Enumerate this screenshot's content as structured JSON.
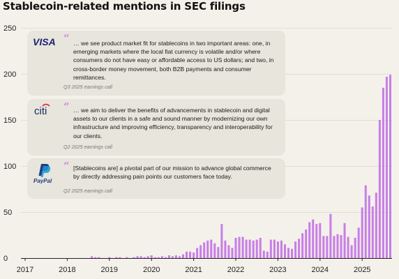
{
  "title": "Stablecoin-related mentions in SEC filings",
  "quotes": [
    {
      "company": "VISA",
      "logo_text": "VISA",
      "text": "… we see product market fit for stablecoins in two important areas: one, in emerging markets where the local fiat currency is volatile and/or where consumers do not have easy or affordable access to US dollars; and two, in cross-border money movement, both B2B payments and consumer remittances.",
      "source": "Q3 2025 earnings call"
    },
    {
      "company": "Citi",
      "logo_text": "citi",
      "text": "… we aim to deliver the benefits of advancements in stablecoin and digital assets to our clients in a safe and sound manner by modernizing our own infrastructure and improving efficiency, transparency and interoperability for our clients.",
      "source": "Q2 2025 earnings call"
    },
    {
      "company": "PayPal",
      "logo_text": "PayPal",
      "text": "[Stablecoins are] a pivotal part of our mission to advance global commerce by directly addressing pain points our customers face today.",
      "source": "Q2 2025 earnings call"
    }
  ],
  "colors": {
    "bar": "#c77ee6",
    "card": "#e7e5dc",
    "background": "#f4f1ea",
    "grid": "#d9d6cd"
  },
  "chart_data": {
    "type": "bar",
    "title": "Stablecoin-related mentions in SEC filings",
    "xlabel": "",
    "ylabel": "",
    "ylim": [
      0,
      250
    ],
    "y_ticks": [
      0,
      50,
      100,
      150,
      200,
      250
    ],
    "x_ticks": [
      "2017",
      "2018",
      "2019",
      "2020",
      "2021",
      "2022",
      "2023",
      "2024",
      "2025"
    ],
    "grid": true,
    "bar_color": "#c77ee6",
    "series": [
      {
        "x": [
          "2018-08",
          "2018-09",
          "2018-10",
          "2018-11",
          "2018-12",
          "2019-01",
          "2019-02",
          "2019-03",
          "2019-04",
          "2019-05",
          "2019-06",
          "2019-07",
          "2019-08",
          "2019-09",
          "2019-10",
          "2019-11",
          "2019-12",
          "2020-01",
          "2020-02",
          "2020-03",
          "2020-04",
          "2020-05",
          "2020-06",
          "2020-07",
          "2020-08",
          "2020-09",
          "2020-10",
          "2020-11",
          "2020-12",
          "2021-01",
          "2021-02",
          "2021-03",
          "2021-04",
          "2021-05",
          "2021-06",
          "2021-07",
          "2021-08",
          "2021-09",
          "2021-10",
          "2021-11",
          "2021-12",
          "2022-01",
          "2022-02",
          "2022-03",
          "2022-04",
          "2022-05",
          "2022-06",
          "2022-07",
          "2022-08",
          "2022-09",
          "2022-10",
          "2022-11",
          "2022-12",
          "2023-01",
          "2023-02",
          "2023-03",
          "2023-04",
          "2023-05",
          "2023-06",
          "2023-07",
          "2023-08",
          "2023-09",
          "2023-10",
          "2023-11",
          "2023-12",
          "2024-01",
          "2024-02",
          "2024-03",
          "2024-04",
          "2024-05",
          "2024-06",
          "2024-07",
          "2024-08",
          "2024-09",
          "2024-10",
          "2024-11",
          "2024-12",
          "2025-01",
          "2025-02",
          "2025-03",
          "2025-04",
          "2025-05",
          "2025-06",
          "2025-07",
          "2025-08",
          "2025-09"
        ],
        "values": [
          2,
          1,
          1,
          0,
          0,
          1,
          0,
          1,
          1,
          0,
          1,
          0,
          1,
          2,
          2,
          1,
          2,
          3,
          1,
          1,
          2,
          1,
          3,
          2,
          3,
          2,
          4,
          7,
          7,
          6,
          11,
          14,
          17,
          19,
          20,
          16,
          12,
          37,
          19,
          14,
          11,
          22,
          23,
          23,
          20,
          20,
          19,
          20,
          22,
          8,
          7,
          20,
          20,
          18,
          19,
          15,
          11,
          10,
          18,
          21,
          27,
          31,
          39,
          42,
          37,
          38,
          24,
          24,
          48,
          24,
          26,
          25,
          38,
          23,
          14,
          22,
          33,
          55,
          79,
          68,
          56,
          71,
          150,
          185,
          197,
          199
        ]
      }
    ]
  }
}
